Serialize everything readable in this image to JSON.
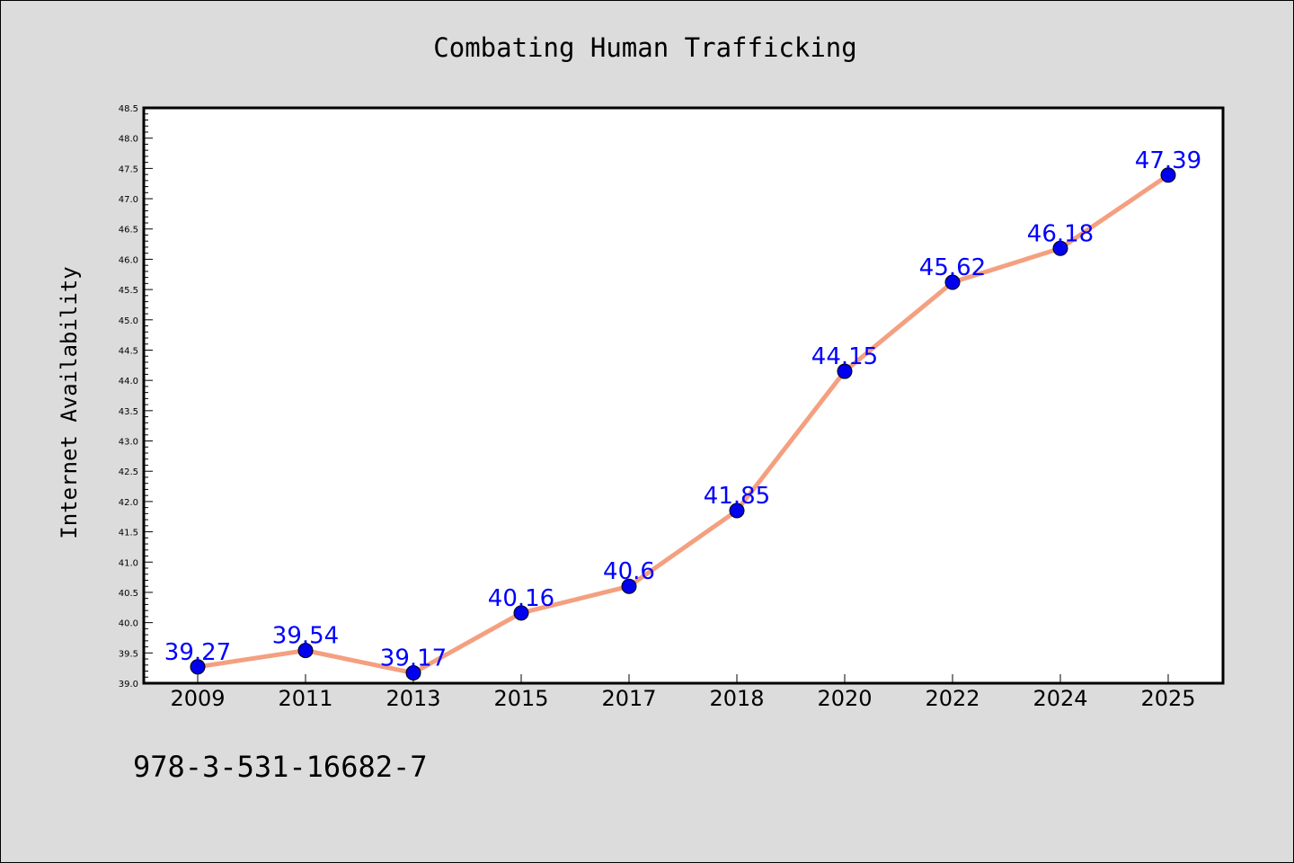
{
  "chart_data": {
    "type": "line",
    "title": "Combating Human Trafficking",
    "xlabel": "",
    "ylabel": "Internet Availability",
    "categories": [
      "2009",
      "2011",
      "2013",
      "2015",
      "2017",
      "2018",
      "2020",
      "2022",
      "2024",
      "2025"
    ],
    "series": [
      {
        "values": [
          39.27,
          39.54,
          39.17,
          40.16,
          40.6,
          41.85,
          44.15,
          45.62,
          46.18,
          47.39
        ],
        "labels": [
          "39.27",
          "39.54",
          "39.17",
          "40.16",
          "40.6",
          "41.85",
          "44.15",
          "45.62",
          "46.18",
          "47.39"
        ]
      }
    ],
    "ylim": [
      39.0,
      48.5
    ],
    "yticks": [
      "39.0",
      "39.5",
      "40.0",
      "40.5",
      "41.0",
      "41.5",
      "42.0",
      "42.5",
      "43.0",
      "43.5",
      "44.0",
      "44.5",
      "45.0",
      "45.5",
      "46.0",
      "46.5",
      "47.0",
      "47.5",
      "48.0",
      "48.5"
    ],
    "grid": false,
    "colors": {
      "line": "#f4a080",
      "marker": "#0000ee",
      "data_label": "#0000ff",
      "plot_background": "#ffffff",
      "figure_background": "#dcdcdc"
    }
  },
  "footer_code": "978-3-531-16682-7"
}
